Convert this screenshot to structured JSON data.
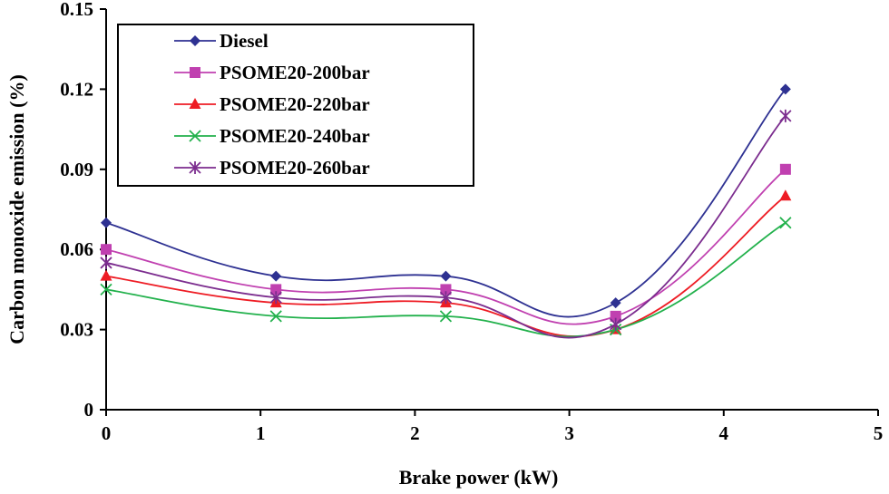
{
  "chart_data": {
    "type": "line",
    "title": "",
    "xlabel": "Brake power (kW)",
    "ylabel": "Carbon monoxide emission (%)",
    "xlim": [
      0,
      5
    ],
    "ylim": [
      0,
      0.15
    ],
    "x_ticks": [
      "0",
      "1",
      "2",
      "3",
      "4",
      "5"
    ],
    "y_ticks": [
      "0",
      "0.03",
      "0.06",
      "0.09",
      "0.12",
      "0.15"
    ],
    "x_tick_values": [
      0,
      1,
      2,
      3,
      4,
      5
    ],
    "y_tick_values": [
      0,
      0.03,
      0.06,
      0.09,
      0.12,
      0.15
    ],
    "grid": false,
    "legend_position": "top-left",
    "x": [
      0,
      1.1,
      2.2,
      3.3,
      4.4
    ],
    "series": [
      {
        "name": "Diesel",
        "values": [
          0.07,
          0.05,
          0.05,
          0.04,
          0.12
        ],
        "color": "#2e3192",
        "marker": "diamond"
      },
      {
        "name": "PSOME20-200bar",
        "values": [
          0.06,
          0.045,
          0.045,
          0.035,
          0.09
        ],
        "color": "#c040b0",
        "marker": "square"
      },
      {
        "name": "PSOME20-220bar",
        "values": [
          0.05,
          0.04,
          0.04,
          0.03,
          0.08
        ],
        "color": "#ee1c24",
        "marker": "triangle"
      },
      {
        "name": "PSOME20-240bar",
        "values": [
          0.045,
          0.035,
          0.035,
          0.03,
          0.07
        ],
        "color": "#22b14c",
        "marker": "x"
      },
      {
        "name": "PSOME20-260bar",
        "values": [
          0.055,
          0.042,
          0.042,
          0.032,
          0.11
        ],
        "color": "#7b2c8e",
        "marker": "star"
      }
    ]
  }
}
